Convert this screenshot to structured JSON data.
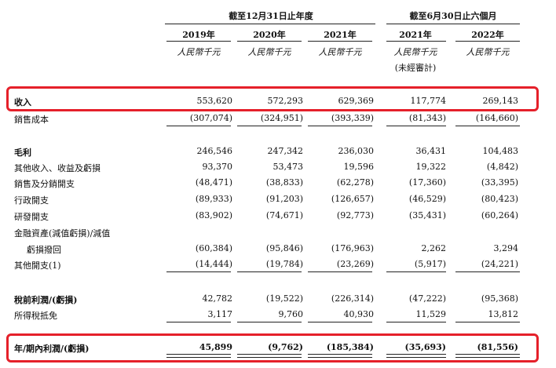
{
  "header": {
    "group_fy": "截至12月31日止年度",
    "group_h1": "截至6月30日止六個月",
    "columns": [
      "2019年",
      "2020年",
      "2021年",
      "2021年",
      "2022年"
    ],
    "unit": "人民幣千元",
    "unaudited": "(未經審計)"
  },
  "rows": [
    {
      "label": "收入",
      "values": [
        "553,620",
        "572,293",
        "629,369",
        "117,774",
        "269,143"
      ]
    },
    {
      "label": "銷售成本",
      "values": [
        "(307,074)",
        "(324,951)",
        "(393,339)",
        "(81,343)",
        "(164,660)"
      ]
    },
    {
      "label": "毛利",
      "values": [
        "246,546",
        "247,342",
        "236,030",
        "36,431",
        "104,483"
      ]
    },
    {
      "label": "其他收入、收益及虧損",
      "values": [
        "93,370",
        "53,473",
        "19,596",
        "19,322",
        "(4,842)"
      ]
    },
    {
      "label": "銷售及分銷開支",
      "values": [
        "(48,471)",
        "(38,833)",
        "(62,278)",
        "(17,360)",
        "(33,395)"
      ]
    },
    {
      "label": "行政開支",
      "values": [
        "(89,933)",
        "(91,203)",
        "(126,657)",
        "(46,529)",
        "(80,423)"
      ]
    },
    {
      "label": "研發開支",
      "values": [
        "(83,902)",
        "(74,671)",
        "(92,773)",
        "(35,431)",
        "(60,264)"
      ]
    },
    {
      "label": "金融資產(減值虧損)/減值",
      "values": [
        "",
        "",
        "",
        "",
        ""
      ]
    },
    {
      "label": "虧損撥回",
      "values": [
        "(60,384)",
        "(95,846)",
        "(176,963)",
        "2,262",
        "3,294"
      ]
    },
    {
      "label": "其他開支(1)",
      "values": [
        "(14,444)",
        "(19,784)",
        "(23,269)",
        "(5,917)",
        "(24,221)"
      ]
    },
    {
      "label": "稅前利潤/(虧損)",
      "values": [
        "42,782",
        "(19,522)",
        "(226,314)",
        "(47,222)",
        "(95,368)"
      ]
    },
    {
      "label": "所得稅抵免",
      "values": [
        "3,117",
        "9,760",
        "40,930",
        "11,529",
        "13,812"
      ]
    },
    {
      "label": "年/期內利潤/(虧損)",
      "values": [
        "45,899",
        "(9,762)",
        "(185,384)",
        "(35,693)",
        "(81,556)"
      ]
    }
  ]
}
